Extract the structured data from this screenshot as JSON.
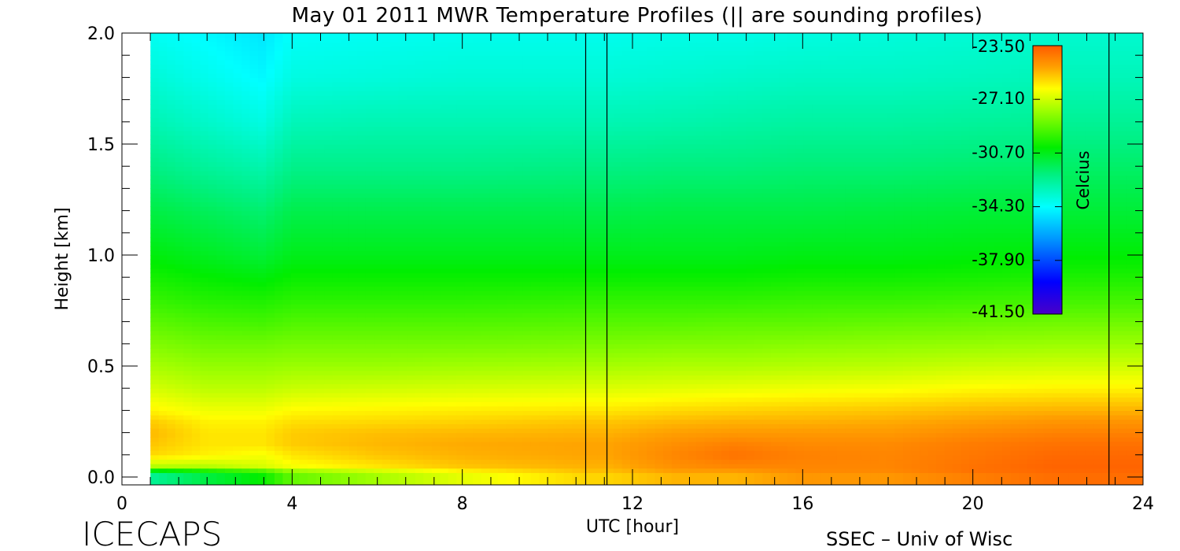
{
  "chart_data": {
    "type": "heatmap",
    "title": "May 01 2011 MWR Temperature Profiles (|| are sounding profiles)",
    "xlabel": "UTC [hour]",
    "ylabel": "Height [km]",
    "xlim": [
      0,
      24
    ],
    "ylim": [
      0,
      2.0
    ],
    "x_ticks": [
      "0",
      "4",
      "8",
      "12",
      "16",
      "20",
      "24"
    ],
    "y_ticks": [
      "0.0",
      "0.5",
      "1.0",
      "1.5",
      "2.0"
    ],
    "data_start_hour": 0.67,
    "colorbar": {
      "label": "Celcius",
      "min": -41.5,
      "max": -23.5,
      "ticks": [
        "-23.50",
        "-27.10",
        "-30.70",
        "-34.30",
        "-37.90",
        "-41.50"
      ]
    },
    "sounding_times_hours": [
      10.9,
      11.4,
      23.2
    ],
    "temperature_grid": {
      "heights_km": [
        0.0,
        0.02,
        0.05,
        0.1,
        0.15,
        0.2,
        0.25,
        0.3,
        0.4,
        0.5,
        0.6,
        0.7,
        0.8,
        0.9,
        1.0,
        1.2,
        1.4,
        1.6,
        1.8,
        2.0
      ],
      "hours": [
        0.67,
        2,
        3.3,
        4,
        6,
        8,
        10.9,
        11.4,
        13,
        14.4,
        16,
        18,
        20,
        22,
        23.2,
        24
      ],
      "values_celsius": [
        [
          -33.0,
          -31.5,
          -30.5,
          -29.0,
          -28.0,
          -27.0,
          -26.0,
          -26.0,
          -25.5,
          -25.5,
          -25.0,
          -25.0,
          -24.5,
          -24.0,
          -24.0,
          -24.0
        ],
        [
          -32.0,
          -31.0,
          -30.0,
          -28.5,
          -27.5,
          -26.5,
          -25.5,
          -25.5,
          -25.0,
          -25.0,
          -24.5,
          -24.5,
          -24.0,
          -23.8,
          -23.8,
          -23.8
        ],
        [
          -27.5,
          -27.5,
          -27.0,
          -26.5,
          -26.0,
          -25.5,
          -25.2,
          -25.2,
          -24.6,
          -24.4,
          -24.4,
          -24.4,
          -24.0,
          -23.7,
          -23.7,
          -23.7
        ],
        [
          -25.8,
          -26.2,
          -26.5,
          -26.0,
          -25.5,
          -25.2,
          -25.0,
          -25.0,
          -24.4,
          -24.0,
          -24.3,
          -24.4,
          -24.1,
          -23.8,
          -23.8,
          -23.8
        ],
        [
          -25.5,
          -26.0,
          -26.0,
          -25.6,
          -25.3,
          -25.1,
          -25.0,
          -25.0,
          -24.6,
          -24.3,
          -24.5,
          -24.5,
          -24.2,
          -24.0,
          -24.0,
          -24.0
        ],
        [
          -25.3,
          -26.0,
          -26.0,
          -25.6,
          -25.4,
          -25.3,
          -25.2,
          -25.2,
          -24.9,
          -24.8,
          -24.8,
          -24.8,
          -24.5,
          -24.3,
          -24.3,
          -24.3
        ],
        [
          -25.6,
          -26.2,
          -26.2,
          -25.9,
          -25.8,
          -25.7,
          -25.5,
          -25.5,
          -25.3,
          -25.2,
          -25.2,
          -25.1,
          -24.9,
          -24.7,
          -24.7,
          -24.7
        ],
        [
          -26.2,
          -26.6,
          -26.6,
          -26.3,
          -26.2,
          -26.1,
          -26.0,
          -26.0,
          -25.8,
          -25.7,
          -25.6,
          -25.5,
          -25.3,
          -25.2,
          -25.2,
          -25.2
        ],
        [
          -27.0,
          -27.4,
          -27.4,
          -27.2,
          -27.1,
          -27.0,
          -26.9,
          -26.9,
          -26.8,
          -26.7,
          -26.6,
          -26.5,
          -26.3,
          -26.2,
          -26.2,
          -26.2
        ],
        [
          -27.7,
          -28.0,
          -28.0,
          -27.9,
          -27.9,
          -27.8,
          -27.7,
          -27.7,
          -27.6,
          -27.6,
          -27.5,
          -27.4,
          -27.2,
          -27.1,
          -27.1,
          -27.1
        ],
        [
          -28.3,
          -28.6,
          -28.6,
          -28.5,
          -28.5,
          -28.5,
          -28.4,
          -28.4,
          -28.3,
          -28.3,
          -28.2,
          -28.1,
          -28.0,
          -27.9,
          -27.9,
          -27.9
        ],
        [
          -28.9,
          -29.2,
          -29.3,
          -29.1,
          -29.1,
          -29.1,
          -29.0,
          -29.0,
          -29.0,
          -28.9,
          -28.9,
          -28.8,
          -28.7,
          -28.6,
          -28.6,
          -28.6
        ],
        [
          -29.5,
          -29.8,
          -29.9,
          -29.7,
          -29.7,
          -29.7,
          -29.6,
          -29.6,
          -29.6,
          -29.6,
          -29.5,
          -29.5,
          -29.4,
          -29.3,
          -29.3,
          -29.3
        ],
        [
          -30.0,
          -30.3,
          -30.5,
          -30.2,
          -30.2,
          -30.2,
          -30.2,
          -30.2,
          -30.2,
          -30.2,
          -30.1,
          -30.1,
          -30.0,
          -29.9,
          -29.9,
          -29.9
        ],
        [
          -30.5,
          -30.8,
          -31.1,
          -30.7,
          -30.7,
          -30.7,
          -30.7,
          -30.7,
          -30.7,
          -30.7,
          -30.6,
          -30.6,
          -30.5,
          -30.4,
          -30.4,
          -30.4
        ],
        [
          -31.3,
          -31.6,
          -31.9,
          -31.4,
          -31.4,
          -31.4,
          -31.4,
          -31.4,
          -31.3,
          -31.3,
          -31.3,
          -31.2,
          -31.1,
          -31.1,
          -31.1,
          -31.1
        ],
        [
          -32.2,
          -32.6,
          -32.9,
          -32.3,
          -32.3,
          -32.3,
          -32.2,
          -32.2,
          -32.1,
          -32.1,
          -32.0,
          -32.0,
          -31.9,
          -31.8,
          -31.8,
          -31.8
        ],
        [
          -33.0,
          -33.4,
          -33.8,
          -33.1,
          -33.0,
          -33.0,
          -33.0,
          -33.0,
          -32.9,
          -32.8,
          -32.7,
          -32.7,
          -32.6,
          -32.5,
          -32.5,
          -32.5
        ],
        [
          -33.6,
          -34.0,
          -34.4,
          -33.8,
          -33.7,
          -33.6,
          -33.6,
          -33.6,
          -33.5,
          -33.4,
          -33.3,
          -33.3,
          -33.2,
          -33.1,
          -33.1,
          -33.1
        ],
        [
          -34.1,
          -34.4,
          -34.8,
          -34.2,
          -34.1,
          -34.0,
          -34.0,
          -34.0,
          -33.9,
          -33.9,
          -33.8,
          -33.7,
          -33.6,
          -33.5,
          -33.5,
          -33.5
        ]
      ]
    }
  },
  "footer": {
    "left": "ICECAPS",
    "right": "SSEC – Univ of Wisc"
  }
}
